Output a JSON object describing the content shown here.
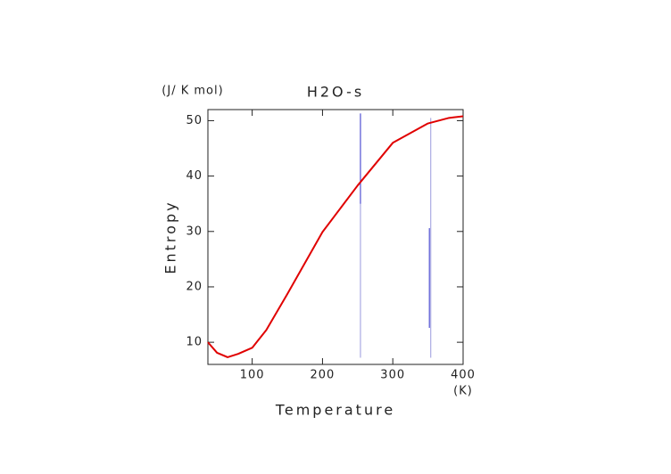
{
  "chart_data": {
    "type": "line",
    "title": "H2O-s",
    "y_unit": "(J/ K mol)",
    "x_unit": "(K)",
    "xlabel": "Temperature",
    "ylabel": "Entropy",
    "xlim": [
      37,
      400
    ],
    "ylim": [
      6,
      52
    ],
    "xticks": [
      100,
      200,
      300,
      400
    ],
    "yticks": [
      10,
      20,
      30,
      40,
      50
    ],
    "series": [
      {
        "color": "#e00000",
        "x": [
          37,
          50,
          65,
          80,
          100,
          120,
          150,
          200,
          250,
          300,
          350,
          380,
          400
        ],
        "values": [
          10,
          8.1,
          7.3,
          7.9,
          9.0,
          12.2,
          18.7,
          29.9,
          38.3,
          46.0,
          49.5,
          50.5,
          50.8
        ]
      }
    ],
    "vlines": [
      {
        "x": 254,
        "ymin": 7.2,
        "ymax": 51.3,
        "color": "#9999dd"
      },
      {
        "x": 254,
        "ymin": 35,
        "ymax": 51.3,
        "color": "#3333cc"
      },
      {
        "x": 354,
        "ymin": 7.2,
        "ymax": 50.5,
        "color": "#9999dd"
      },
      {
        "x": 352,
        "ymin": 12.6,
        "ymax": 30.6,
        "color": "#3333cc"
      }
    ]
  }
}
